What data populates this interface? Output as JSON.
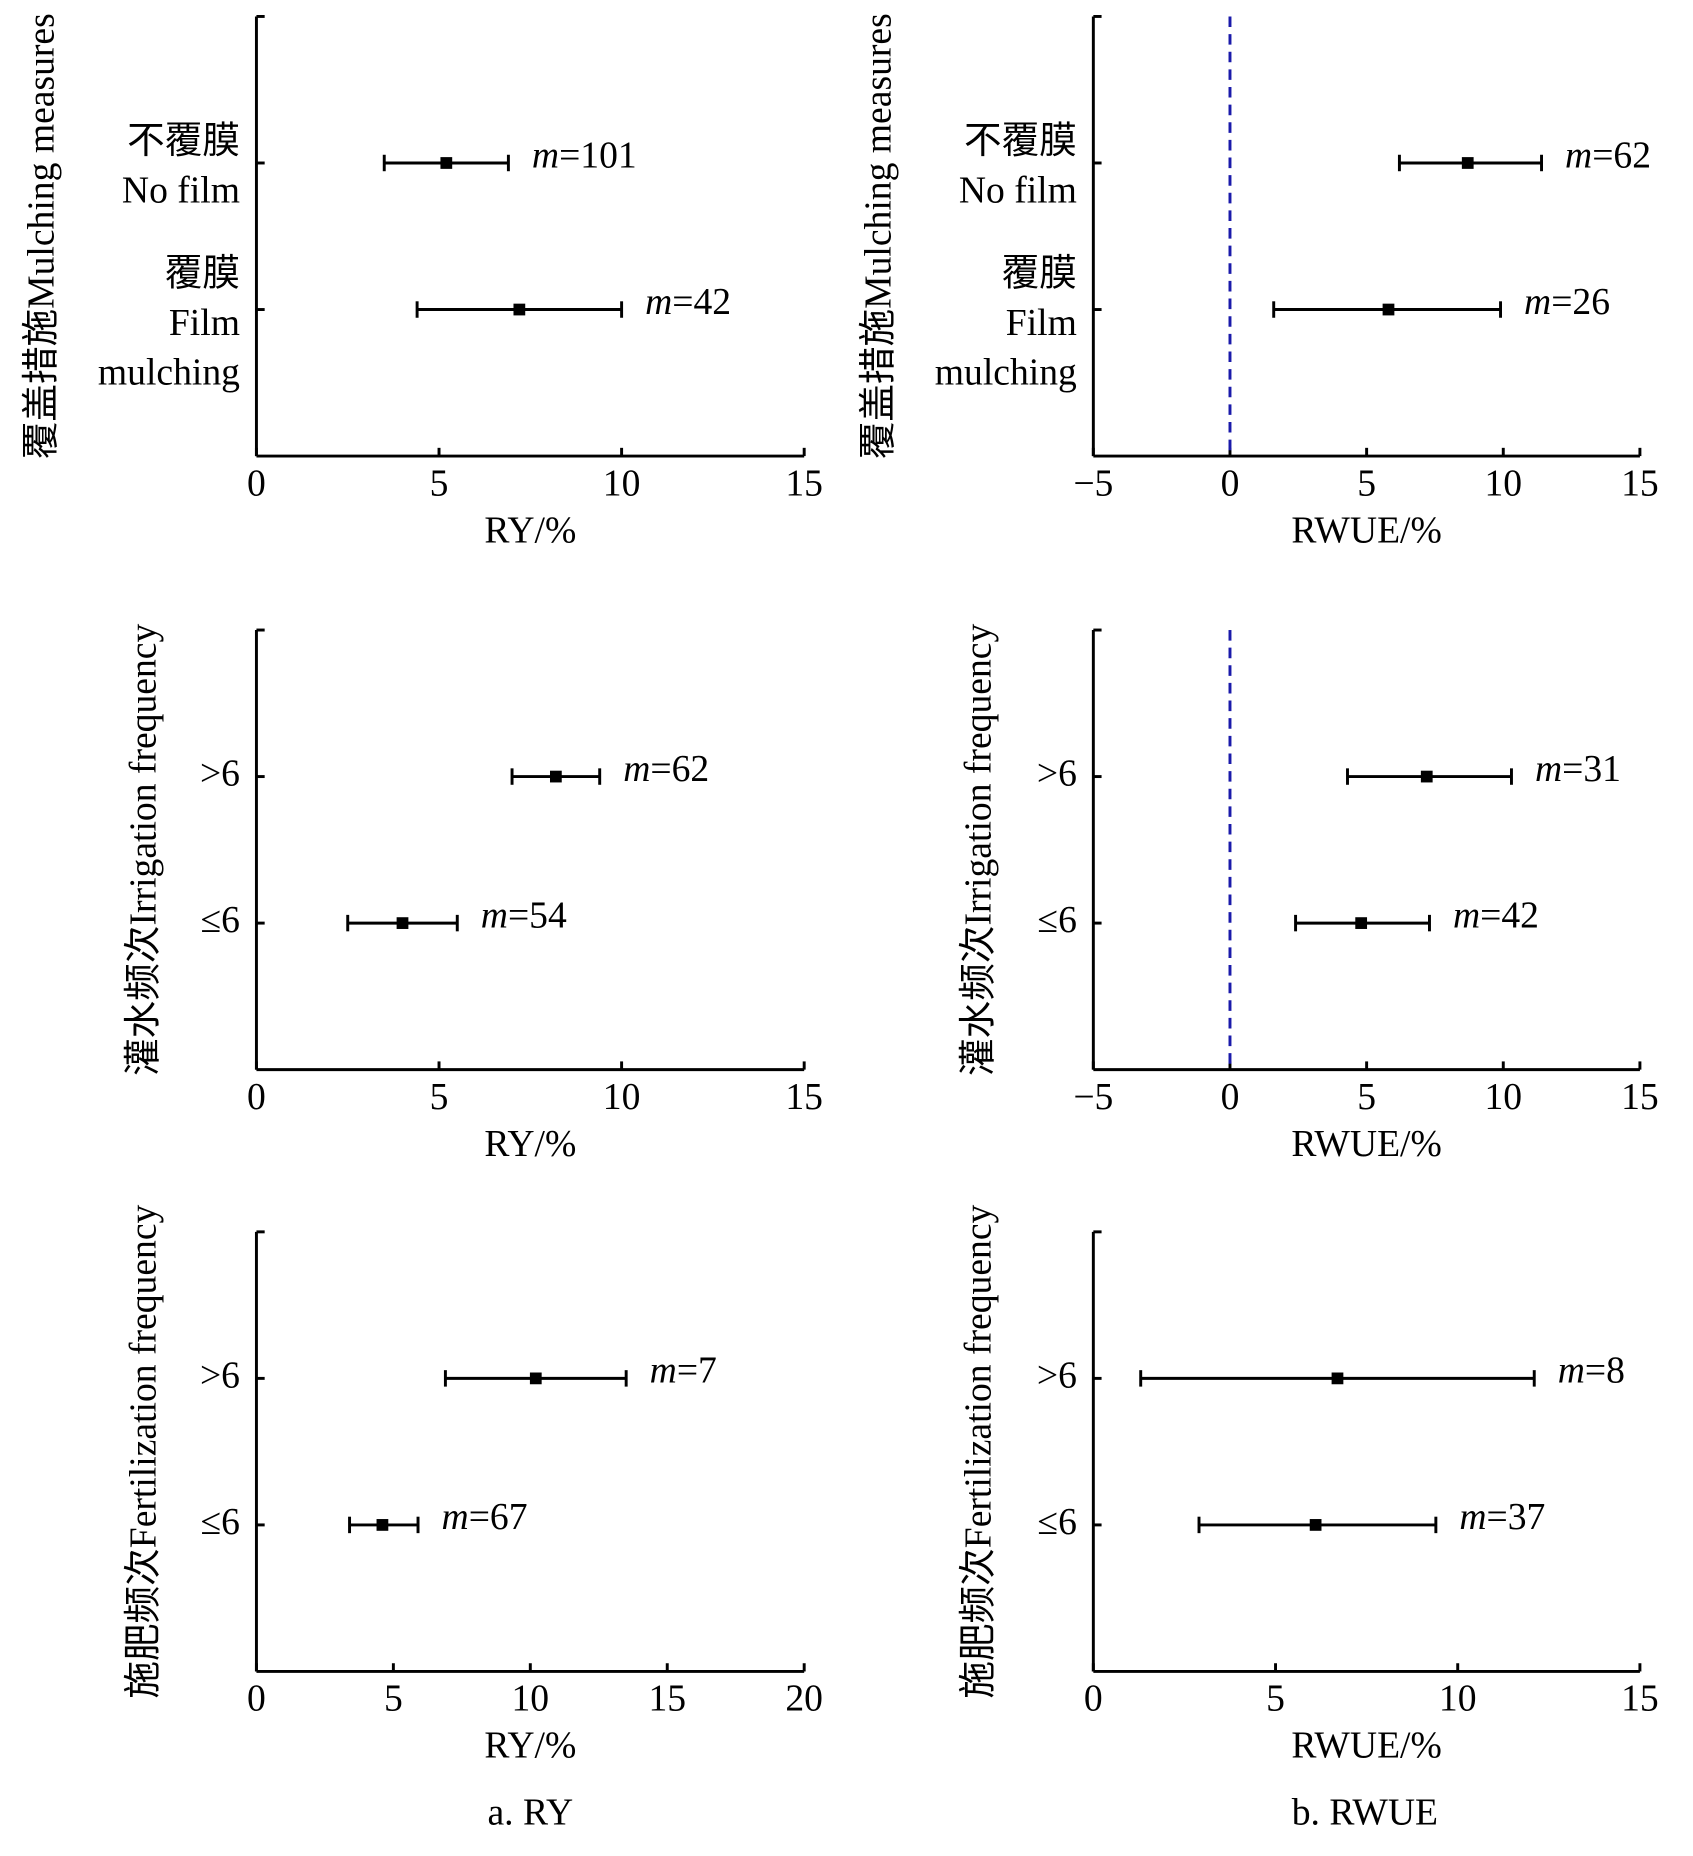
{
  "chart_data": [
    {
      "type": "forest",
      "ylabel": "覆盖措施Mulching measures",
      "xlabel": "RY/%",
      "categories": [
        "不覆膜\nNo film",
        "覆膜\nFilm\nmulching"
      ],
      "series": [
        {
          "color": "#000000",
          "values": [
            5.2,
            7.2
          ],
          "lower": [
            3.5,
            4.4
          ],
          "upper": [
            6.9,
            10.0
          ]
        }
      ],
      "annotations": [
        "m=101",
        "m=42"
      ],
      "xlim": [
        0,
        15
      ],
      "xticks": [
        0,
        5,
        10,
        15
      ]
    },
    {
      "type": "forest",
      "ylabel": "覆盖措施Mulching measures",
      "xlabel": "RWUE/%",
      "categories": [
        "不覆膜\nNo film",
        "覆膜\nFilm\nmulching"
      ],
      "series": [
        {
          "color": "#000000",
          "values": [
            8.7,
            5.8
          ],
          "lower": [
            6.2,
            1.6
          ],
          "upper": [
            11.4,
            9.9
          ]
        }
      ],
      "annotations": [
        "m=62",
        "m=26"
      ],
      "xlim": [
        -5,
        15
      ],
      "xticks": [
        {
          "value": -5,
          "label": "−5"
        },
        0,
        5,
        10,
        15
      ],
      "ref_line": 0,
      "ref_color": "#1a1aaa"
    },
    {
      "type": "forest",
      "ylabel": "灌水频次Irrigation frequency",
      "xlabel": "RY/%",
      "categories": [
        ">6",
        "≤6"
      ],
      "series": [
        {
          "color": "#000000",
          "values": [
            8.2,
            4.0
          ],
          "lower": [
            7.0,
            2.5
          ],
          "upper": [
            9.4,
            5.5
          ]
        }
      ],
      "annotations": [
        "m=62",
        "m=54"
      ],
      "xlim": [
        0,
        15
      ],
      "xticks": [
        0,
        5,
        10,
        15
      ]
    },
    {
      "type": "forest",
      "ylabel": "灌水频次Irrigation frequency",
      "xlabel": "RWUE/%",
      "categories": [
        ">6",
        "≤6"
      ],
      "series": [
        {
          "color": "#000000",
          "values": [
            7.2,
            4.8
          ],
          "lower": [
            4.3,
            2.4
          ],
          "upper": [
            10.3,
            7.3
          ]
        }
      ],
      "annotations": [
        "m=31",
        "m=42"
      ],
      "xlim": [
        -5,
        15
      ],
      "xticks": [
        {
          "value": -5,
          "label": "−5"
        },
        0,
        5,
        10,
        15
      ],
      "ref_line": 0,
      "ref_color": "#1a1aaa"
    },
    {
      "type": "forest",
      "ylabel": "施肥频次Fertilization frequency",
      "xlabel": "RY/%",
      "categories": [
        ">6",
        "≤6"
      ],
      "series": [
        {
          "color": "#000000",
          "values": [
            10.2,
            4.6
          ],
          "lower": [
            6.9,
            3.4
          ],
          "upper": [
            13.5,
            5.9
          ]
        }
      ],
      "annotations": [
        "m=7",
        "m=67"
      ],
      "xlim": [
        0,
        20
      ],
      "xticks": [
        0,
        5,
        10,
        15,
        20
      ]
    },
    {
      "type": "forest",
      "ylabel": "施肥频次Fertilization frequency",
      "xlabel": "RWUE/%",
      "categories": [
        ">6",
        "≤6"
      ],
      "series": [
        {
          "color": "#000000",
          "values": [
            6.7,
            6.1
          ],
          "lower": [
            1.3,
            2.9
          ],
          "upper": [
            12.1,
            9.4
          ]
        }
      ],
      "annotations": [
        "m=8",
        "m=37"
      ],
      "xlim": [
        0,
        15
      ],
      "xticks": [
        0,
        5,
        10,
        15
      ]
    }
  ],
  "captions": [
    "a. RY",
    "b. RWUE"
  ]
}
